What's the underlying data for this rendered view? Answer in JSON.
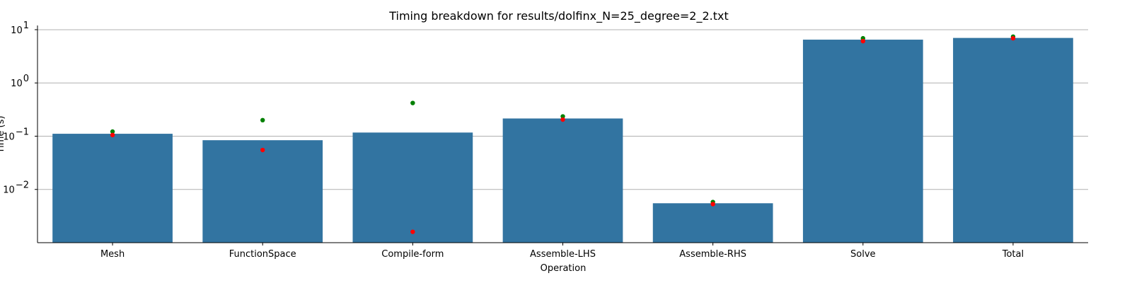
{
  "chart_data": {
    "type": "bar",
    "title": "Timing breakdown for results/dolfinx_N=25_degree=2_2.txt",
    "xlabel": "Operation",
    "ylabel": "Time (s)",
    "yscale": "log",
    "ylim": [
      0.001,
      12
    ],
    "grid": "y",
    "y_ticks": [
      {
        "value": 0.01,
        "base": "10",
        "exp": "−2"
      },
      {
        "value": 0.1,
        "base": "10",
        "exp": "−1"
      },
      {
        "value": 1,
        "base": "10",
        "exp": "0"
      },
      {
        "value": 10,
        "base": "10",
        "exp": "1"
      }
    ],
    "categories": [
      "Mesh",
      "FunctionSpace",
      "Compile-form",
      "Assemble-LHS",
      "Assemble-RHS",
      "Solve",
      "Total"
    ],
    "series": [
      {
        "type": "bar",
        "color": "#3274a1",
        "values": [
          0.111,
          0.084,
          0.117,
          0.215,
          0.0055,
          6.5,
          7.0
        ]
      },
      {
        "type": "point",
        "color": "#008000",
        "values": [
          0.122,
          0.2,
          0.42,
          0.235,
          0.0058,
          6.9,
          7.4
        ]
      },
      {
        "type": "point",
        "color": "#ff0000",
        "values": [
          0.105,
          0.055,
          0.0016,
          0.205,
          0.0053,
          6.1,
          6.9
        ]
      }
    ]
  }
}
